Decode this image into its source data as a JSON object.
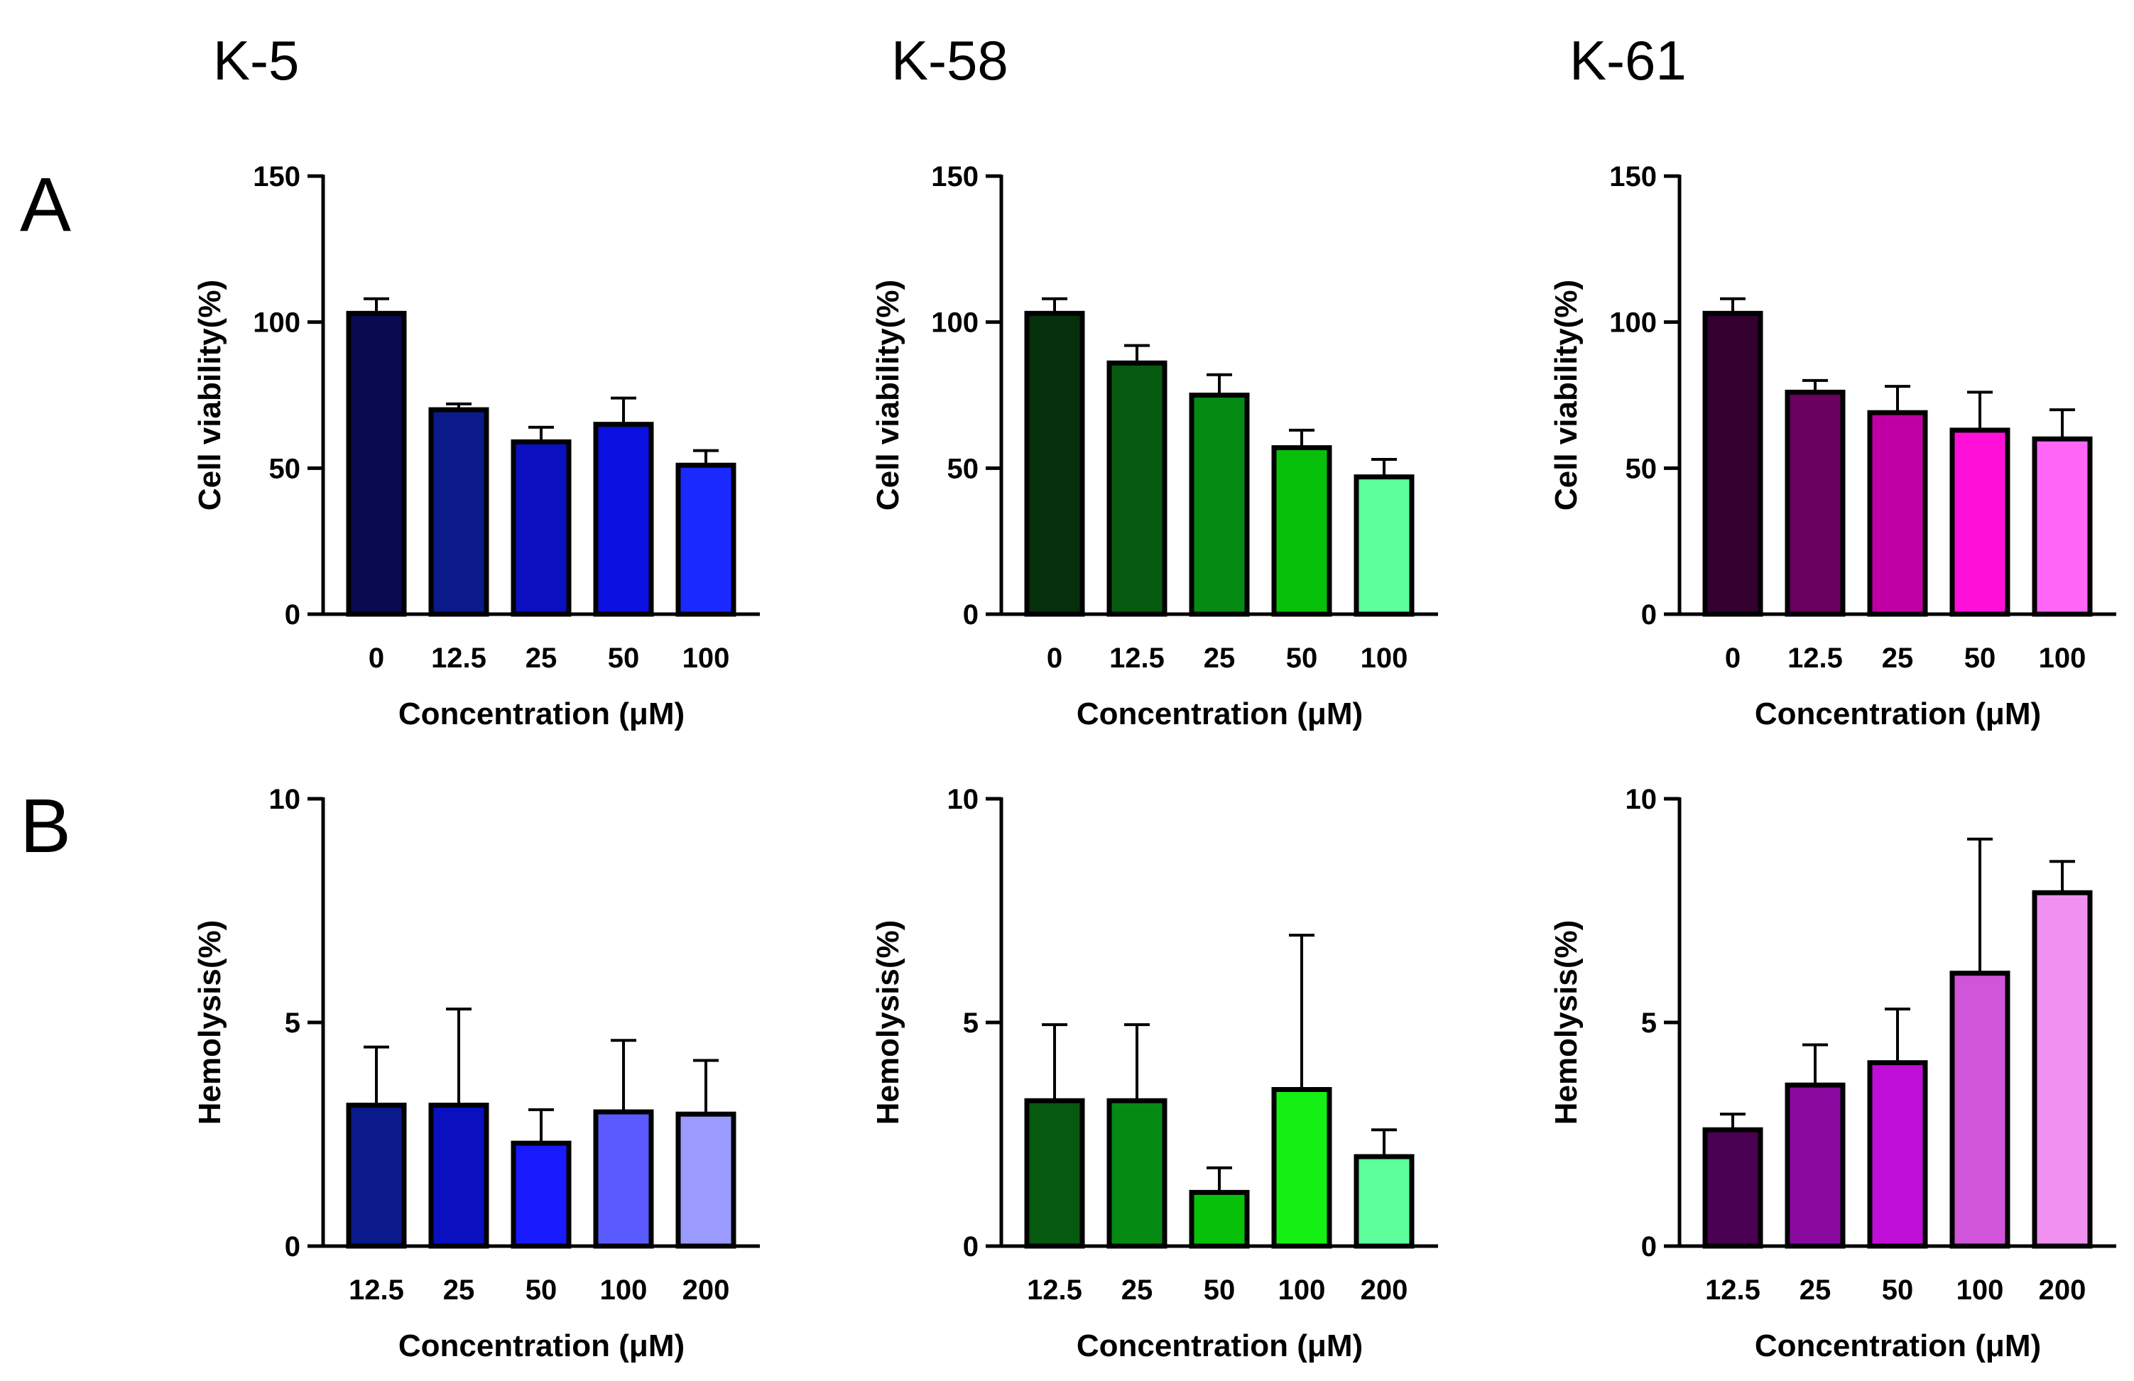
{
  "titles": [
    "K-5",
    "K-58",
    "K-61"
  ],
  "panel_labels": [
    "A",
    "B"
  ],
  "chart_data": [
    {
      "type": "bar",
      "title": "K-5",
      "row": "A",
      "xlabel": "Concentration (μM)",
      "ylabel": "Cell viability(%)",
      "ylim": [
        0,
        150
      ],
      "yticks": [
        0,
        50,
        100,
        150
      ],
      "categories": [
        "0",
        "12.5",
        "25",
        "50",
        "100"
      ],
      "values": [
        103,
        70,
        59,
        65,
        51
      ],
      "errors": [
        5,
        2,
        5,
        9,
        5
      ],
      "colors": [
        "#0a0a50",
        "#0a1a8a",
        "#0a10c0",
        "#0a10e0",
        "#1a2aff"
      ],
      "grid": false
    },
    {
      "type": "bar",
      "title": "K-58",
      "row": "A",
      "xlabel": "Concentration (μM)",
      "ylabel": "Cell viability(%)",
      "ylim": [
        0,
        150
      ],
      "yticks": [
        0,
        50,
        100,
        150
      ],
      "categories": [
        "0",
        "12.5",
        "25",
        "50",
        "100"
      ],
      "values": [
        103,
        86,
        75,
        57,
        47
      ],
      "errors": [
        5,
        6,
        7,
        6,
        6
      ],
      "colors": [
        "#06300c",
        "#055a10",
        "#058a14",
        "#06c00a",
        "#5cff9a"
      ],
      "grid": false
    },
    {
      "type": "bar",
      "title": "K-61",
      "row": "A",
      "xlabel": "Concentration (μM)",
      "ylabel": "Cell viability(%)",
      "ylim": [
        0,
        150
      ],
      "yticks": [
        0,
        50,
        100,
        150
      ],
      "categories": [
        "0",
        "12.5",
        "25",
        "50",
        "100"
      ],
      "values": [
        103,
        76,
        69,
        63,
        60
      ],
      "errors": [
        5,
        4,
        9,
        13,
        10
      ],
      "colors": [
        "#330030",
        "#6a0060",
        "#c000a5",
        "#ff10d8",
        "#ff66f5"
      ],
      "grid": false
    },
    {
      "type": "bar",
      "title": "K-5",
      "row": "B",
      "xlabel": "Concentration (μM)",
      "ylabel": "Hemolysis(%)",
      "ylim": [
        0,
        10
      ],
      "yticks": [
        0,
        5,
        10
      ],
      "categories": [
        "12.5",
        "25",
        "50",
        "100",
        "200"
      ],
      "values": [
        3.15,
        3.15,
        2.3,
        3.0,
        2.95
      ],
      "errors": [
        1.3,
        2.15,
        0.75,
        1.6,
        1.2
      ],
      "colors": [
        "#0a1a8a",
        "#0a10c0",
        "#1a1aff",
        "#5a5aff",
        "#9a9aff"
      ],
      "grid": false
    },
    {
      "type": "bar",
      "title": "K-58",
      "row": "B",
      "xlabel": "Concentration (μM)",
      "ylabel": "Hemolysis(%)",
      "ylim": [
        0,
        10
      ],
      "yticks": [
        0,
        5,
        10
      ],
      "categories": [
        "12.5",
        "25",
        "50",
        "100",
        "200"
      ],
      "values": [
        3.25,
        3.25,
        1.2,
        3.5,
        2.0
      ],
      "errors": [
        1.7,
        1.7,
        0.55,
        3.45,
        0.6
      ],
      "colors": [
        "#055a10",
        "#058a14",
        "#06c00a",
        "#14f014",
        "#5cff9a"
      ],
      "grid": false
    },
    {
      "type": "bar",
      "title": "K-61",
      "row": "B",
      "xlabel": "Concentration (μM)",
      "ylabel": "Hemolysis(%)",
      "ylim": [
        0,
        10
      ],
      "yticks": [
        0,
        5,
        10
      ],
      "categories": [
        "12.5",
        "25",
        "50",
        "100",
        "200"
      ],
      "values": [
        2.6,
        3.6,
        4.1,
        6.1,
        7.9
      ],
      "errors": [
        0.35,
        0.9,
        1.2,
        3.0,
        0.7
      ],
      "colors": [
        "#4a0050",
        "#8a0aa0",
        "#c010d8",
        "#d055d8",
        "#f090f0"
      ],
      "grid": false
    }
  ]
}
